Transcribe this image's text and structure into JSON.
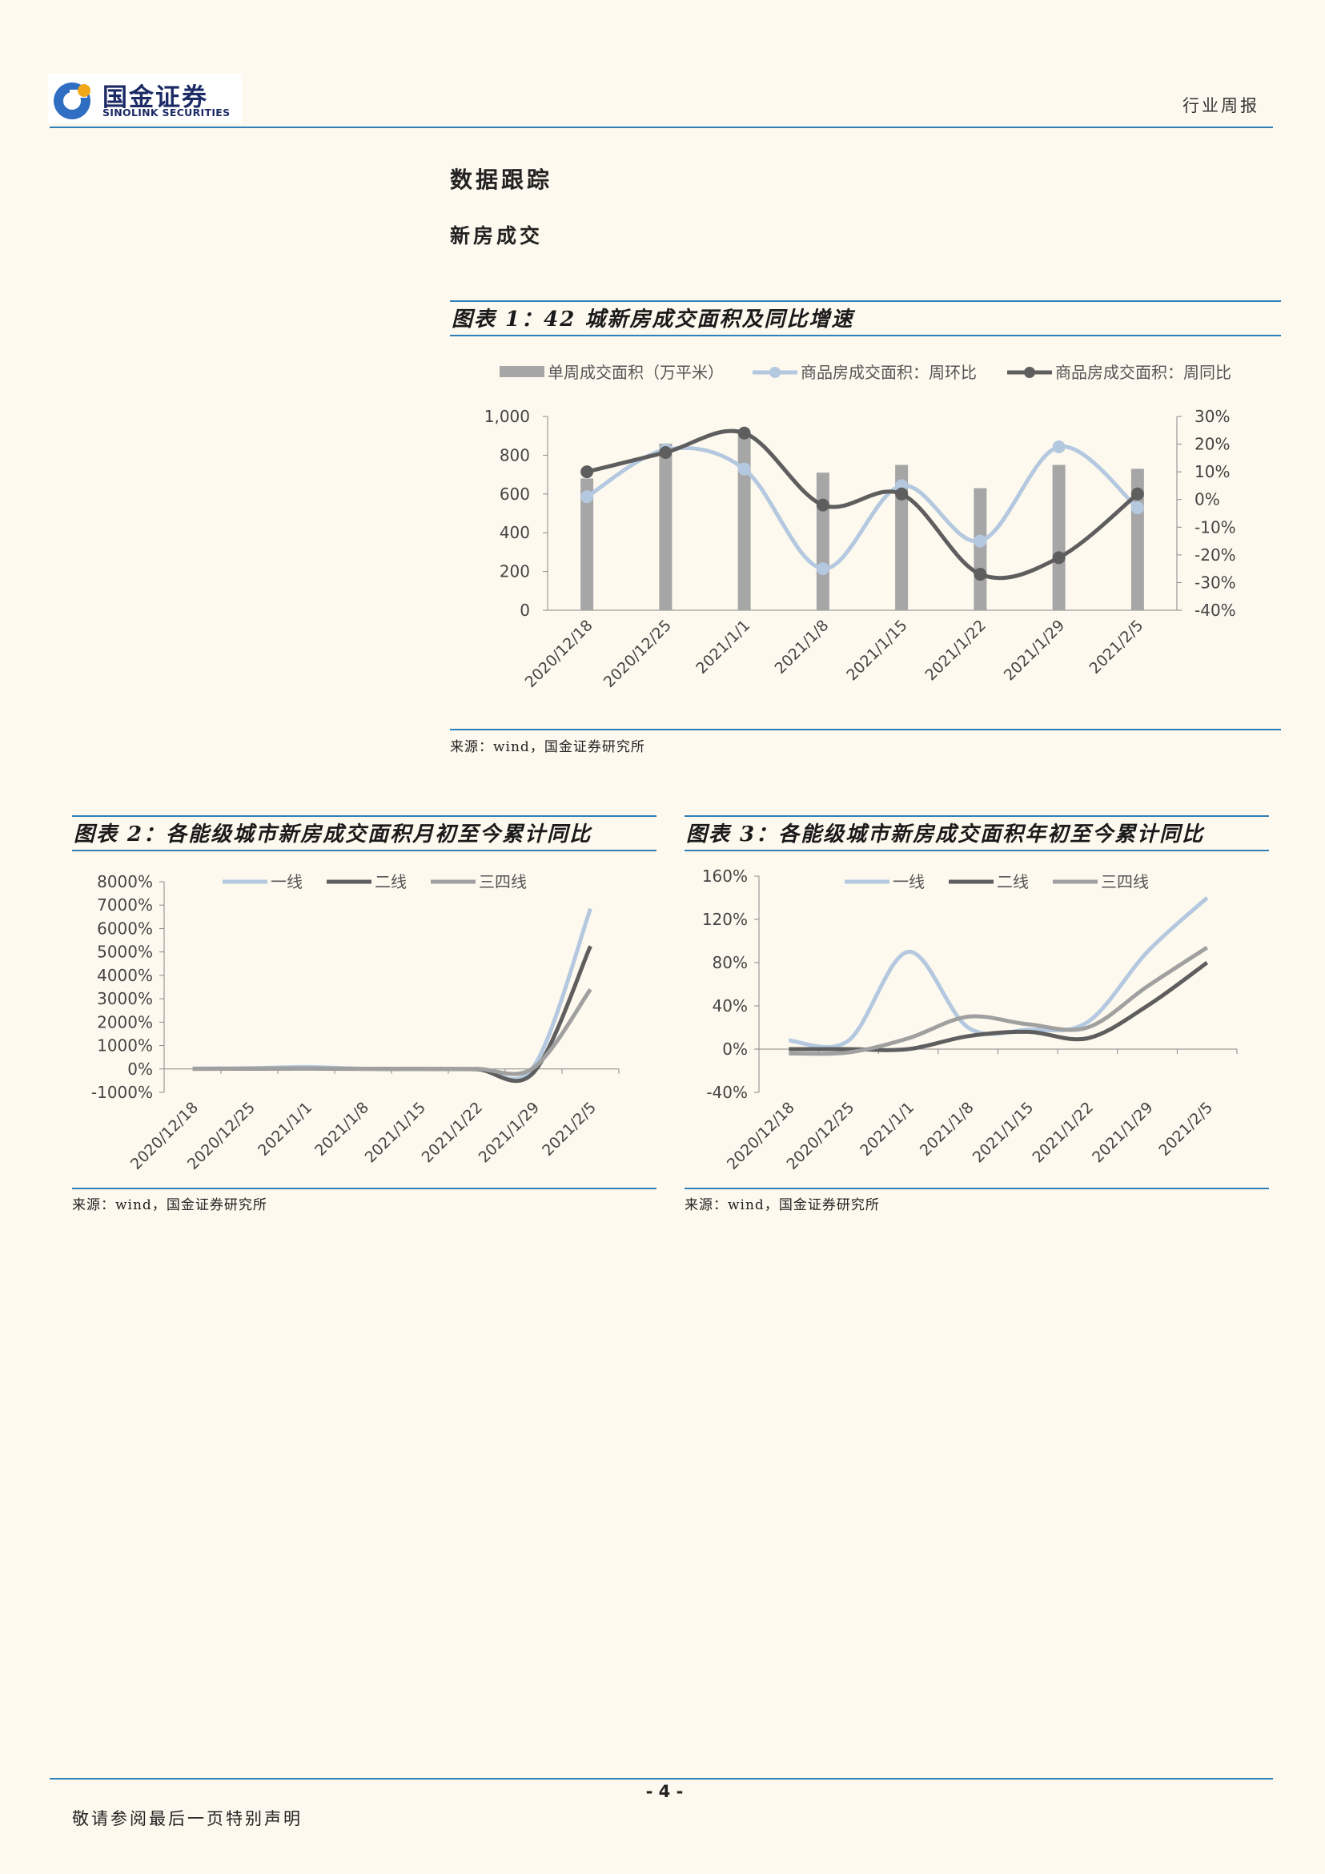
{
  "header": {
    "logo_cn": "国金证券",
    "logo_en": "SINOLINK SECURITIES",
    "report_type": "行业周报"
  },
  "section": {
    "title": "数据跟踪",
    "subtitle": "新房成交"
  },
  "colors": {
    "accent": "#2f7fb8",
    "bar": "#a6a6a6",
    "light_blue": "#b4c8e0",
    "dark_gray": "#5e5e5e",
    "mid_gray": "#a0a0a0"
  },
  "figures": [
    {
      "title": "图表 1：42 城新房成交面积及同比增速",
      "source": "来源：wind，国金证券研究所"
    },
    {
      "title": "图表 2：各能级城市新房成交面积月初至今累计同比",
      "source": "来源：wind，国金证券研究所"
    },
    {
      "title": "图表 3：各能级城市新房成交面积年初至今累计同比",
      "source": "来源：wind，国金证券研究所"
    }
  ],
  "chart_data": [
    {
      "type": "bar",
      "categories": [
        "2020/12/18",
        "2020/12/25",
        "2021/1/1",
        "2021/1/8",
        "2021/1/15",
        "2021/1/22",
        "2021/1/29",
        "2021/2/5"
      ],
      "series": [
        {
          "name": "单周成交面积（万平米）",
          "type": "bar",
          "axis": "left",
          "values": [
            680,
            860,
            900,
            710,
            750,
            630,
            750,
            730
          ]
        },
        {
          "name": "商品房成交面积：周环比",
          "type": "line",
          "axis": "right",
          "values": [
            1,
            18,
            11,
            -25,
            5,
            -15,
            19,
            -3
          ]
        },
        {
          "name": "商品房成交面积：周同比",
          "type": "line",
          "axis": "right",
          "values": [
            10,
            17,
            24,
            -2,
            2,
            -27,
            -21,
            2
          ]
        }
      ],
      "left_ticks": [
        "1,000",
        "800",
        "600",
        "400",
        "200",
        "0"
      ],
      "right_ticks": [
        "30%",
        "20%",
        "10%",
        "0%",
        "-10%",
        "-20%",
        "-30%",
        "-40%"
      ],
      "ylim": [
        0,
        1000
      ],
      "y2lim": [
        -40,
        30
      ],
      "legend": "top"
    },
    {
      "type": "line",
      "categories": [
        "2020/12/18",
        "2020/12/25",
        "2021/1/1",
        "2021/1/8",
        "2021/1/15",
        "2021/1/22",
        "2021/1/29",
        "2021/2/5"
      ],
      "series": [
        {
          "name": "一线",
          "values": [
            20,
            30,
            80,
            10,
            5,
            5,
            100,
            6850
          ]
        },
        {
          "name": "二线",
          "values": [
            5,
            10,
            15,
            5,
            0,
            -10,
            -150,
            5250
          ]
        },
        {
          "name": "三四线",
          "values": [
            10,
            15,
            20,
            10,
            5,
            5,
            50,
            3400
          ]
        }
      ],
      "y_ticks": [
        "8000%",
        "7000%",
        "6000%",
        "5000%",
        "4000%",
        "3000%",
        "2000%",
        "1000%",
        "0%",
        "-1000%"
      ],
      "ylim": [
        -1000,
        8000
      ],
      "legend": "top"
    },
    {
      "type": "line",
      "categories": [
        "2020/12/18",
        "2020/12/25",
        "2021/1/1",
        "2021/1/8",
        "2021/1/15",
        "2021/1/22",
        "2021/1/29",
        "2021/2/5"
      ],
      "series": [
        {
          "name": "一线",
          "values": [
            8,
            8,
            90,
            20,
            18,
            25,
            90,
            140
          ]
        },
        {
          "name": "二线",
          "values": [
            0,
            0,
            0,
            12,
            16,
            10,
            40,
            80
          ]
        },
        {
          "name": "三四线",
          "values": [
            -4,
            -3,
            10,
            30,
            23,
            20,
            58,
            94
          ]
        }
      ],
      "y_ticks": [
        "160%",
        "120%",
        "80%",
        "40%",
        "0%",
        "-40%"
      ],
      "ylim": [
        -40,
        160
      ],
      "legend": "top"
    }
  ],
  "footer": {
    "page_number": "- 4 -",
    "disclaimer": "敬请参阅最后一页特别声明"
  }
}
